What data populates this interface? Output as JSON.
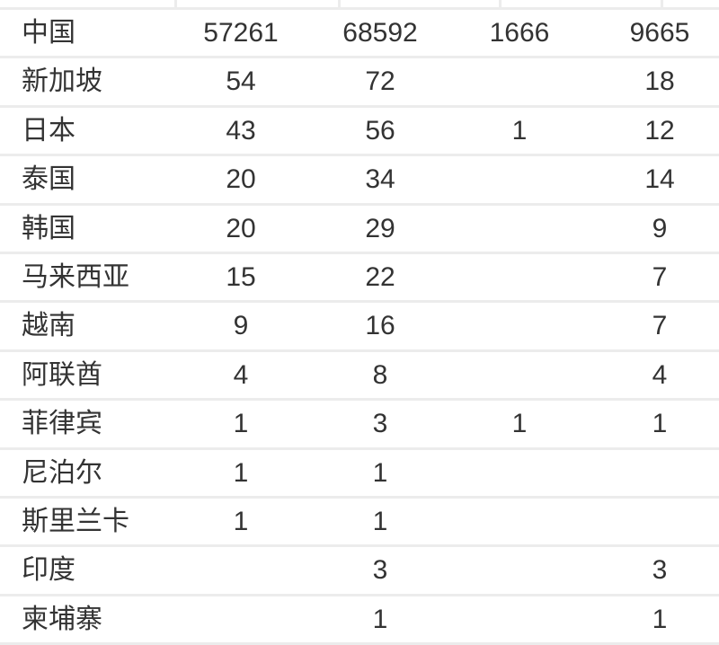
{
  "rows": [
    {
      "name": "中国",
      "v1": "57261",
      "v2": "68592",
      "v3": "1666",
      "v4": "9665"
    },
    {
      "name": "新加坡",
      "v1": "54",
      "v2": "72",
      "v3": "",
      "v4": "18"
    },
    {
      "name": "日本",
      "v1": "43",
      "v2": "56",
      "v3": "1",
      "v4": "12"
    },
    {
      "name": "泰国",
      "v1": "20",
      "v2": "34",
      "v3": "",
      "v4": "14"
    },
    {
      "name": "韩国",
      "v1": "20",
      "v2": "29",
      "v3": "",
      "v4": "9"
    },
    {
      "name": "马来西亚",
      "v1": "15",
      "v2": "22",
      "v3": "",
      "v4": "7"
    },
    {
      "name": "越南",
      "v1": "9",
      "v2": "16",
      "v3": "",
      "v4": "7"
    },
    {
      "name": "阿联酋",
      "v1": "4",
      "v2": "8",
      "v3": "",
      "v4": "4"
    },
    {
      "name": "菲律宾",
      "v1": "1",
      "v2": "3",
      "v3": "1",
      "v4": "1"
    },
    {
      "name": "尼泊尔",
      "v1": "1",
      "v2": "1",
      "v3": "",
      "v4": ""
    },
    {
      "name": "斯里兰卡",
      "v1": "1",
      "v2": "1",
      "v3": "",
      "v4": ""
    },
    {
      "name": "印度",
      "v1": "",
      "v2": "3",
      "v3": "",
      "v4": "3"
    },
    {
      "name": "柬埔寨",
      "v1": "",
      "v2": "1",
      "v3": "",
      "v4": "1"
    }
  ]
}
